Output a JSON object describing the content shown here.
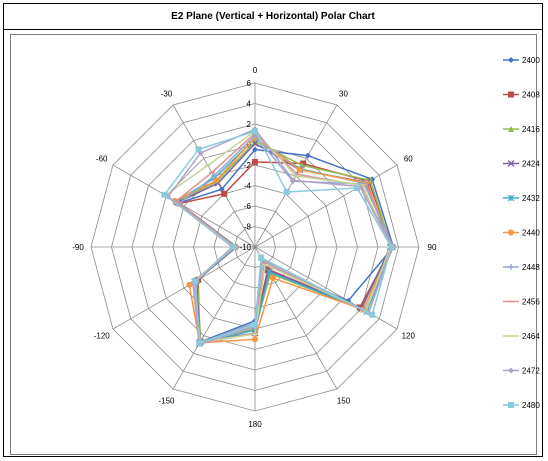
{
  "chart_data": {
    "type": "radar",
    "title": "E2 Plane (Vertical + Horizontal) Polar Chart",
    "angles": [
      0,
      30,
      60,
      90,
      120,
      150,
      180,
      -150,
      -120,
      -90,
      -60,
      -30
    ],
    "angle_labels": [
      "0",
      "30",
      "60",
      "90",
      "120",
      "150",
      "180",
      "-150",
      "-120",
      "-90",
      "-60",
      "-30"
    ],
    "r_ticks": [
      -10,
      -8,
      -6,
      -4,
      -2,
      0,
      2,
      4,
      6
    ],
    "r_tick_labels": [
      "-10",
      "-8",
      "-6",
      "-4",
      "-2",
      "0",
      "2",
      "4",
      "6"
    ],
    "rlim": [
      -10,
      6
    ],
    "grid": true,
    "legend_position": "right",
    "series": [
      {
        "name": "2400",
        "color": "#4472c4",
        "marker": "diamond",
        "values": [
          -0.5,
          0.3,
          3.2,
          3.5,
          0.5,
          -8.0,
          -2.8,
          0.7,
          -3.3,
          -8.2,
          -1.4,
          -3.5
        ]
      },
      {
        "name": "2408",
        "color": "#be4b48",
        "marker": "square",
        "values": [
          -1.7,
          -0.6,
          2.8,
          3.4,
          1.8,
          -7.5,
          -2.2,
          0.8,
          -3.6,
          -8.0,
          -1.5,
          -4.0
        ]
      },
      {
        "name": "2416",
        "color": "#98b954",
        "marker": "triangle",
        "values": [
          0.3,
          -0.8,
          3.0,
          3.3,
          2.2,
          -7.0,
          -2.0,
          0.6,
          -3.5,
          -7.8,
          -1.2,
          -2.6
        ]
      },
      {
        "name": "2424",
        "color": "#7d60a0",
        "marker": "x",
        "values": [
          0.1,
          -1.3,
          2.6,
          3.2,
          2.0,
          -7.4,
          -1.6,
          0.7,
          -3.4,
          -8.0,
          -1.3,
          -2.8
        ]
      },
      {
        "name": "2432",
        "color": "#46aac5",
        "marker": "star",
        "values": [
          0.6,
          -1.2,
          2.4,
          3.4,
          2.6,
          -7.2,
          -1.9,
          0.9,
          -3.2,
          -8.0,
          -1.1,
          -2.2
        ]
      },
      {
        "name": "2440",
        "color": "#f79646",
        "marker": "circle",
        "values": [
          0.7,
          -1.3,
          2.5,
          3.4,
          2.2,
          -6.5,
          -1.0,
          0.8,
          -2.6,
          -8.1,
          -1.0,
          -2.5
        ]
      },
      {
        "name": "2448",
        "color": "#93a9d0",
        "marker": "plus",
        "values": [
          0.9,
          -2.6,
          2.3,
          3.5,
          2.4,
          -8.5,
          -2.6,
          0.8,
          -3.3,
          -7.8,
          -1.5,
          -2.0
        ]
      },
      {
        "name": "2456",
        "color": "#d99694",
        "marker": "dash",
        "values": [
          1.1,
          -1.8,
          2.0,
          3.4,
          2.8,
          -8.2,
          -1.6,
          0.9,
          -3.0,
          -8.0,
          -1.1,
          -1.6
        ]
      },
      {
        "name": "2464",
        "color": "#c3d69b",
        "marker": "dash",
        "values": [
          1.3,
          -2.0,
          2.1,
          3.2,
          2.5,
          -8.0,
          -1.5,
          0.7,
          -3.2,
          -7.9,
          0.1,
          -0.8
        ]
      },
      {
        "name": "2472",
        "color": "#b3a2c7",
        "marker": "diamond",
        "values": [
          1.5,
          -2.5,
          1.8,
          3.4,
          2.8,
          -8.6,
          -2.2,
          0.9,
          -3.1,
          -7.8,
          -0.2,
          0.6
        ]
      },
      {
        "name": "2480",
        "color": "#8cc9da",
        "marker": "square",
        "values": [
          1.3,
          -3.8,
          1.5,
          3.3,
          3.2,
          -8.8,
          -2.4,
          0.8,
          -3.3,
          -7.9,
          0.2,
          1.0
        ]
      }
    ]
  }
}
